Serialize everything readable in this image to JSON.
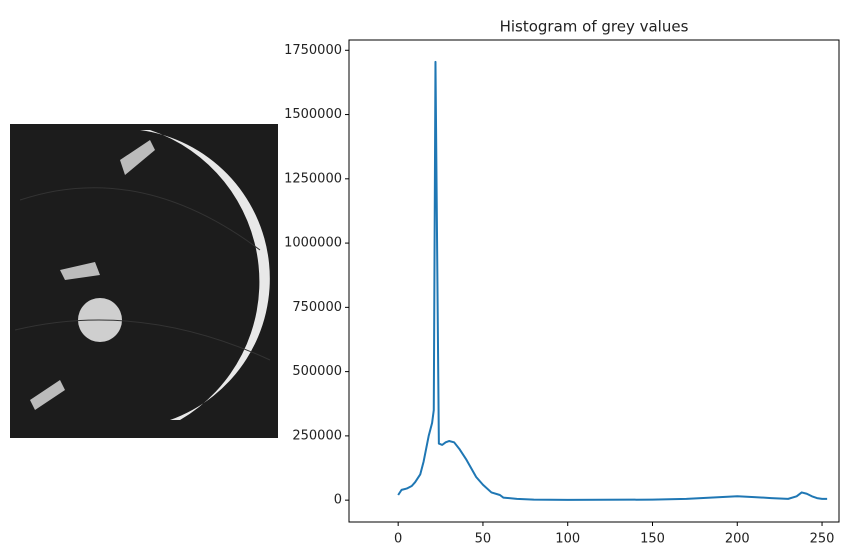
{
  "chart_data": {
    "type": "line",
    "title": "Histogram of grey values",
    "x": [
      0,
      2,
      5,
      8,
      10,
      13,
      15,
      18,
      20,
      21,
      22,
      24,
      26,
      28,
      30,
      33,
      36,
      40,
      43,
      46,
      50,
      55,
      60,
      62,
      70,
      80,
      100,
      150,
      170,
      190,
      200,
      210,
      220,
      230,
      235,
      238,
      241,
      244,
      247,
      250,
      253
    ],
    "values": [
      20000,
      40000,
      45000,
      55000,
      70000,
      100000,
      150000,
      250000,
      300000,
      350000,
      1705000,
      220000,
      215000,
      225000,
      230000,
      225000,
      200000,
      160000,
      125000,
      90000,
      60000,
      30000,
      20000,
      10000,
      5000,
      2000,
      1000,
      2000,
      5000,
      12000,
      15000,
      12000,
      8000,
      5000,
      15000,
      30000,
      25000,
      15000,
      8000,
      5000,
      5000
    ],
    "color": "#1f77b4",
    "xlim": [
      -29,
      260
    ],
    "xticks": [
      0,
      50,
      100,
      150,
      200,
      250
    ],
    "ylim": [
      -85000,
      1790000
    ],
    "yticks": [
      0,
      250000,
      500000,
      750000,
      1000000,
      1250000,
      1500000,
      1750000
    ],
    "grid": false
  }
}
